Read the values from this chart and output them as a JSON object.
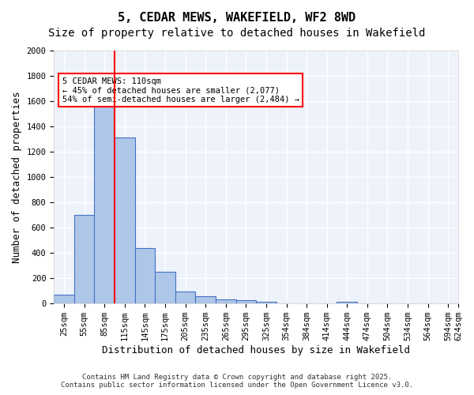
{
  "title": "5, CEDAR MEWS, WAKEFIELD, WF2 8WD",
  "subtitle": "Size of property relative to detached houses in Wakefield",
  "xlabel": "Distribution of detached houses by size in Wakefield",
  "ylabel": "Number of detached properties",
  "bar_values": [
    70,
    700,
    1650,
    1310,
    440,
    250,
    95,
    55,
    30,
    25,
    15,
    0,
    0,
    0,
    15,
    0,
    0,
    0,
    0,
    0
  ],
  "categories": [
    "25sqm",
    "55sqm",
    "85sqm",
    "115sqm",
    "145sqm",
    "175sqm",
    "205sqm",
    "235sqm",
    "265sqm",
    "295sqm",
    "325sqm",
    "354sqm",
    "384sqm",
    "414sqm",
    "444sqm",
    "474sqm",
    "504sqm",
    "534sqm",
    "564sqm",
    "594sqm"
  ],
  "bar_color": "#aec6e8",
  "bar_edge_color": "#4472c4",
  "bg_color": "#eef2fb",
  "grid_color": "#ffffff",
  "vline_x": 2.5,
  "vline_color": "#ff0000",
  "annotation_title": "5 CEDAR MEWS: 110sqm",
  "annotation_line1": "← 45% of detached houses are smaller (2,077)",
  "annotation_line2": "54% of semi-detached houses are larger (2,484) →",
  "annotation_box_color": "#ff0000",
  "ylim": [
    0,
    2000
  ],
  "yticks": [
    0,
    200,
    400,
    600,
    800,
    1000,
    1200,
    1400,
    1600,
    1800,
    2000
  ],
  "footer1": "Contains HM Land Registry data © Crown copyright and database right 2025.",
  "footer2": "Contains public sector information licensed under the Open Government Licence v3.0.",
  "title_fontsize": 11,
  "subtitle_fontsize": 10,
  "tick_fontsize": 7.5,
  "ylabel_fontsize": 9,
  "xlabel_fontsize": 9,
  "extra_xtick_label": "624sqm"
}
